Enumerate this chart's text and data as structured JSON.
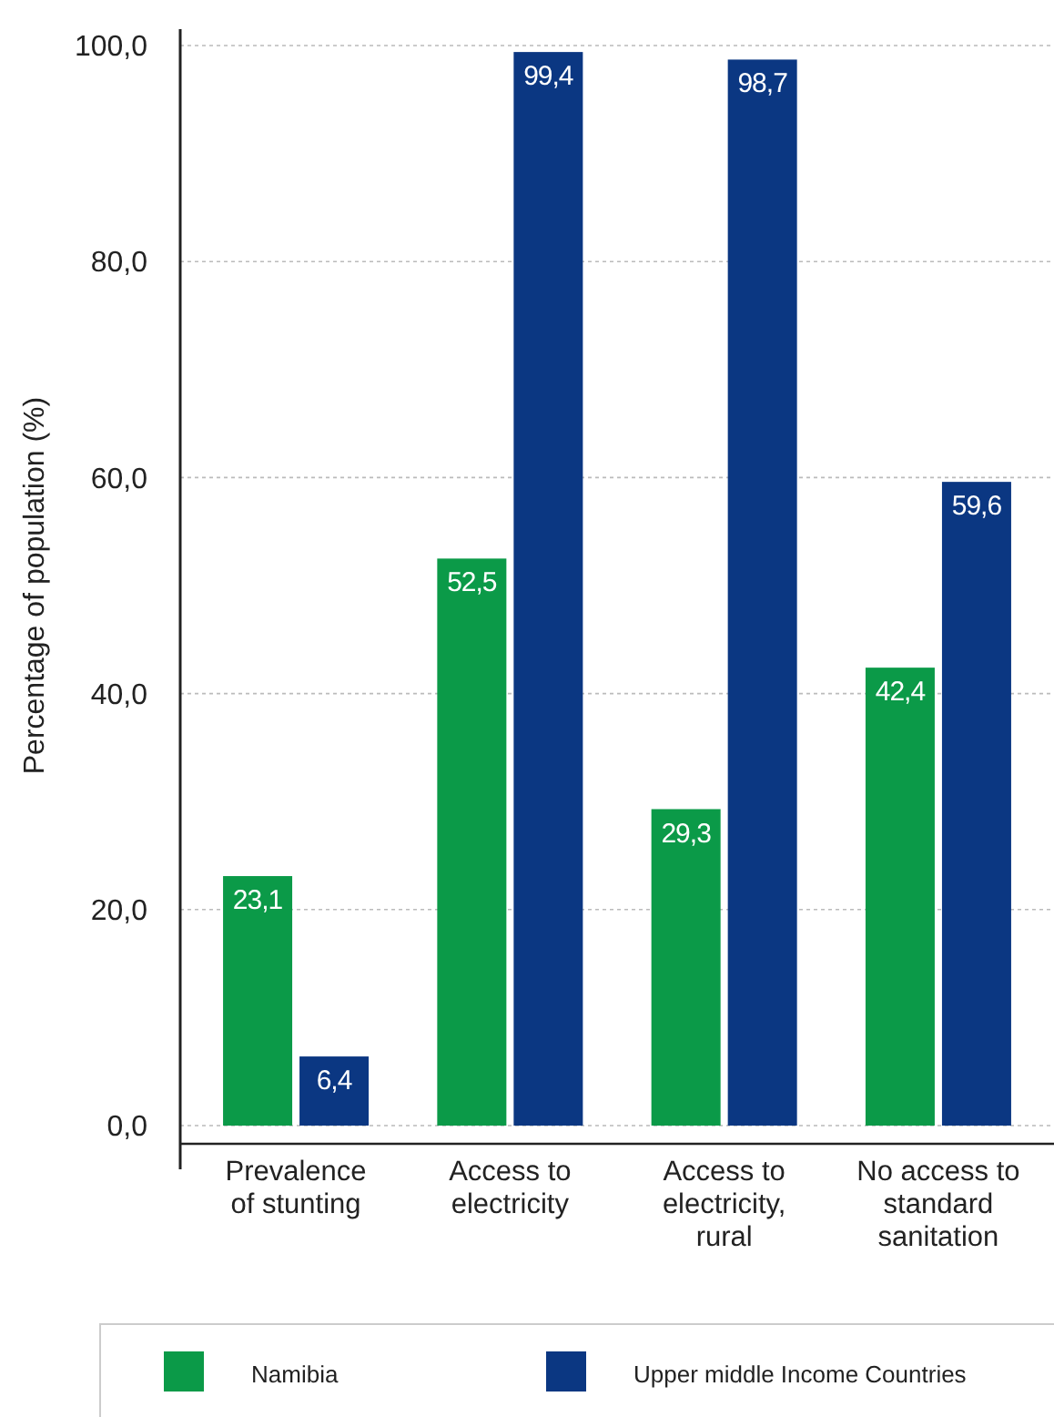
{
  "chart_data": {
    "type": "bar",
    "ylabel": "Percentage of population (%)",
    "categories": [
      "Prevalence of stunting",
      "Access to electricity",
      "Access to electricity, rural",
      "No access to standard sanitation"
    ],
    "series": [
      {
        "name": "Namibia",
        "color": "#0b9a48",
        "values": [
          23.1,
          52.5,
          29.3,
          42.4
        ],
        "value_labels": [
          "23,1",
          "52,5",
          "29,3",
          "42,4"
        ]
      },
      {
        "name": "Upper middle Income Countries",
        "color": "#0b3782",
        "values": [
          6.4,
          99.4,
          98.7,
          59.6
        ],
        "value_labels": [
          "6,4",
          "99,4",
          "98,7",
          "59,6"
        ]
      }
    ],
    "ylim": [
      0,
      100
    ],
    "yticks": [
      {
        "value": 0,
        "label": "0,0"
      },
      {
        "value": 20,
        "label": "20,0"
      },
      {
        "value": 40,
        "label": "40,0"
      },
      {
        "value": 60,
        "label": "60,0"
      },
      {
        "value": 80,
        "label": "80,0"
      },
      {
        "value": 100,
        "label": "100,0"
      }
    ],
    "grid": "y",
    "legend": "bottom"
  }
}
